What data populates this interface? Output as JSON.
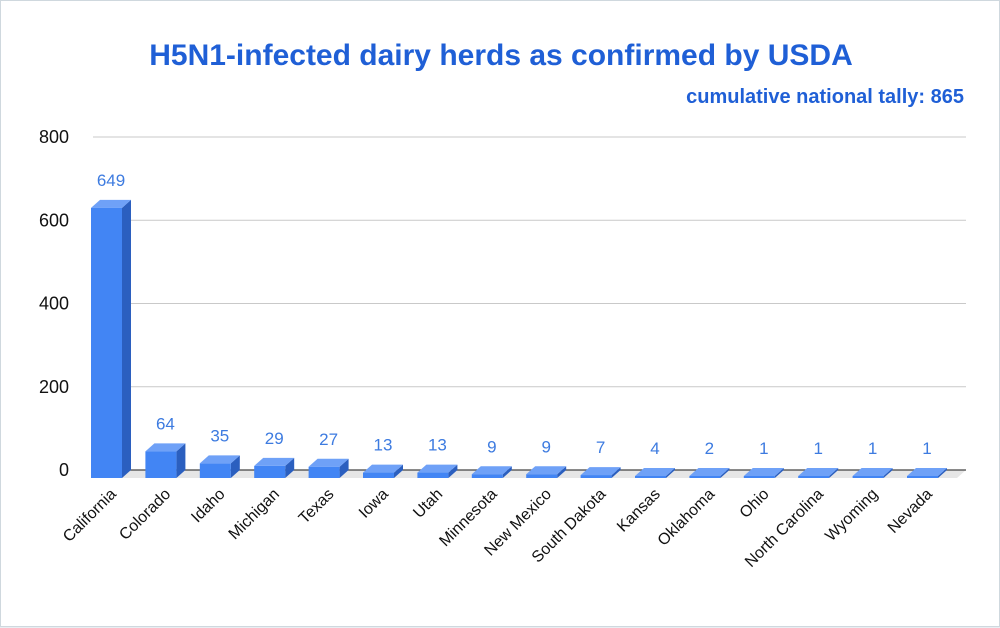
{
  "colors": {
    "title": "#1f5fd6",
    "bar_front": "#4285f4",
    "bar_side": "#2b5fbf",
    "bar_top": "#6fa1f7",
    "data_label": "#3d7be0",
    "grid": "#c9c9c9",
    "floor": "#e6e6e6"
  },
  "chart_data": {
    "type": "bar",
    "title": "H5N1-infected dairy herds as confirmed by USDA",
    "subtitle": "cumulative national tally: 865",
    "xlabel": "",
    "ylabel": "",
    "ylim": [
      0,
      800
    ],
    "yticks": [
      0,
      200,
      400,
      600,
      800
    ],
    "grid": true,
    "legend": "none",
    "categories": [
      "California",
      "Colorado",
      "Idaho",
      "Michigan",
      "Texas",
      "Iowa",
      "Utah",
      "Minnesota",
      "New Mexico",
      "South Dakota",
      "Kansas",
      "Oklahoma",
      "Ohio",
      "North Carolina",
      "Wyoming",
      "Nevada"
    ],
    "values": [
      649,
      64,
      35,
      29,
      27,
      13,
      13,
      9,
      9,
      7,
      4,
      2,
      1,
      1,
      1,
      1
    ]
  }
}
